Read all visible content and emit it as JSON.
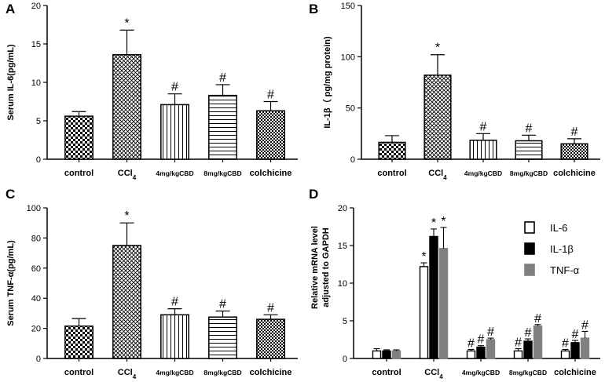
{
  "chart_data": [
    {
      "panel": "A",
      "type": "bar",
      "ylabel": "Serum IL-6(pg/mL)",
      "ylim": [
        0,
        20
      ],
      "yticks": [
        0,
        5,
        10,
        15,
        20
      ],
      "categories": [
        "control",
        "CCl4",
        "4mg/kgCBD",
        "8mg/kgCBD",
        "colchicine"
      ],
      "values": [
        5.6,
        13.6,
        7.1,
        8.3,
        6.3
      ],
      "errors": [
        0.6,
        3.2,
        1.4,
        1.4,
        1.2
      ],
      "annotations": [
        "",
        "*",
        "#",
        "#",
        "#"
      ]
    },
    {
      "panel": "B",
      "type": "bar",
      "ylabel": "IL-1β（ pg/mg protein)",
      "ylim": [
        0,
        150
      ],
      "yticks": [
        0,
        50,
        100,
        150
      ],
      "categories": [
        "control",
        "CCl4",
        "4mg/kgCBD",
        "8mg/kgCBD",
        "colchicine"
      ],
      "values": [
        16.5,
        82,
        18.5,
        18,
        15
      ],
      "errors": [
        6.5,
        20,
        6.5,
        5.5,
        5
      ],
      "annotations": [
        "",
        "*",
        "#",
        "#",
        "#"
      ]
    },
    {
      "panel": "C",
      "type": "bar",
      "ylabel": "Serum TNF-α(pg/mL)",
      "ylim": [
        0,
        100
      ],
      "yticks": [
        0,
        20,
        40,
        60,
        80,
        100
      ],
      "categories": [
        "control",
        "CCl4",
        "4mg/kgCBD",
        "8mg/kgCBD",
        "colchicine"
      ],
      "values": [
        21.5,
        75,
        29,
        27.5,
        26
      ],
      "errors": [
        5,
        15,
        4,
        4,
        3
      ],
      "annotations": [
        "",
        "*",
        "#",
        "#",
        "#"
      ]
    },
    {
      "panel": "D",
      "type": "bar",
      "ylabel": "Relative mRNA level adjusted to GAPDH",
      "ylabel_lines": [
        "Relative mRNA level",
        "adjusted to GAPDH"
      ],
      "ylim": [
        0,
        20
      ],
      "yticks": [
        0,
        5,
        10,
        15,
        20
      ],
      "categories": [
        "control",
        "CCl4",
        "4mg/kgCBD",
        "8mg/kgCBD",
        "colchicine"
      ],
      "legend_position": "top-right",
      "series": [
        {
          "name": "IL-6",
          "values": [
            1.0,
            12.2,
            1.0,
            1.0,
            1.0
          ],
          "errors": [
            0.3,
            0.5,
            0.2,
            0.3,
            0.2
          ],
          "annotations": [
            "",
            "*",
            "#",
            "#",
            "#"
          ]
        },
        {
          "name": "IL-1β",
          "values": [
            1.0,
            16.2,
            1.5,
            2.3,
            2.1
          ],
          "errors": [
            0.15,
            1.0,
            0.2,
            0.3,
            0.3
          ],
          "annotations": [
            "",
            "*",
            "#",
            "#",
            "#"
          ]
        },
        {
          "name": "TNF-α",
          "values": [
            1.0,
            14.6,
            2.5,
            4.3,
            2.7
          ],
          "errors": [
            0.15,
            2.8,
            0.2,
            0.2,
            0.9
          ],
          "annotations": [
            "",
            "*",
            "#",
            "#",
            "#"
          ]
        }
      ]
    }
  ],
  "colors": {
    "il6": "#ffffff",
    "il1b": "#000000",
    "tnfa": "#808080",
    "axis": "#000000"
  }
}
